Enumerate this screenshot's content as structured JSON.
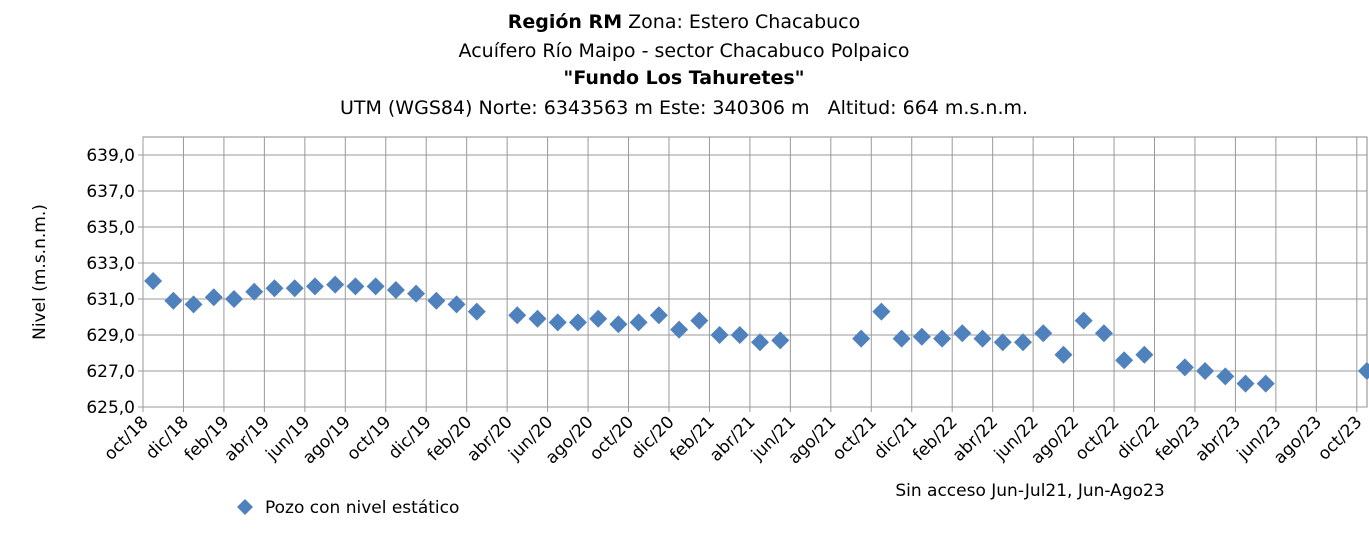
{
  "chart_data": {
    "type": "scatter",
    "title_bold": "Región RM",
    "title": "Zona: Estero Chacabuco",
    "subtitle": "Acuífero Río Maipo - sector Chacabuco Polpaico",
    "subtitle_bold": "\"Fundo Los Tahuretes\"",
    "location": "UTM (WGS84) Norte: 6343563 m Este: 340306 m   Altitud: 664 m.s.n.m.",
    "y_label": "Nivel (m.s.n.m.)",
    "annotation": "Sin acceso Jun-Jul21, Jun-Ago23",
    "categories": [
      "oct/18",
      null,
      "dic/18",
      null,
      "feb/19",
      null,
      "abr/19",
      null,
      "jun/19",
      null,
      "ago/19",
      null,
      "oct/19",
      null,
      "dic/19",
      null,
      "feb/20",
      null,
      "abr/20",
      null,
      "jun/20",
      null,
      "ago/20",
      null,
      "oct/20",
      null,
      "dic/20",
      null,
      "feb/21",
      null,
      "abr/21",
      null,
      "jun/21",
      null,
      "ago/21",
      null,
      "oct/21",
      null,
      "dic/21",
      null,
      "feb/22",
      null,
      "abr/22",
      null,
      "jun/22",
      null,
      "ago/22",
      null,
      "oct/22",
      null,
      "dic/22",
      null,
      "feb/23",
      null,
      "abr/23",
      null,
      "jun/23",
      null,
      "ago/23",
      null,
      "oct/23"
    ],
    "series": [
      {
        "name": "Pozo con nivel estático",
        "color": "#4f81bd",
        "values": [
          632.0,
          630.9,
          630.7,
          631.1,
          631.0,
          631.4,
          631.6,
          631.6,
          631.7,
          631.8,
          631.7,
          631.7,
          631.5,
          631.3,
          630.9,
          630.7,
          630.3,
          null,
          630.1,
          629.9,
          629.7,
          629.7,
          629.9,
          629.6,
          629.7,
          630.1,
          629.3,
          629.8,
          629.0,
          629.0,
          628.6,
          628.7,
          null,
          null,
          null,
          628.8,
          630.3,
          628.8,
          628.9,
          628.8,
          629.1,
          628.8,
          628.6,
          628.6,
          629.1,
          627.9,
          629.8,
          629.1,
          627.6,
          627.9,
          null,
          627.2,
          627.0,
          626.7,
          626.3,
          626.3,
          null,
          null,
          null,
          null,
          627.0
        ]
      }
    ],
    "ylim": [
      625,
      640
    ],
    "yticks": [
      {
        "value": 625,
        "label": "625,0"
      },
      {
        "value": 627,
        "label": "627,0"
      },
      {
        "value": 629,
        "label": "629,0"
      },
      {
        "value": 631,
        "label": "631,0"
      },
      {
        "value": 633,
        "label": "633,0"
      },
      {
        "value": 635,
        "label": "635,0"
      },
      {
        "value": 637,
        "label": "637,0"
      },
      {
        "value": 639,
        "label": "639,0"
      }
    ],
    "grid": true
  }
}
